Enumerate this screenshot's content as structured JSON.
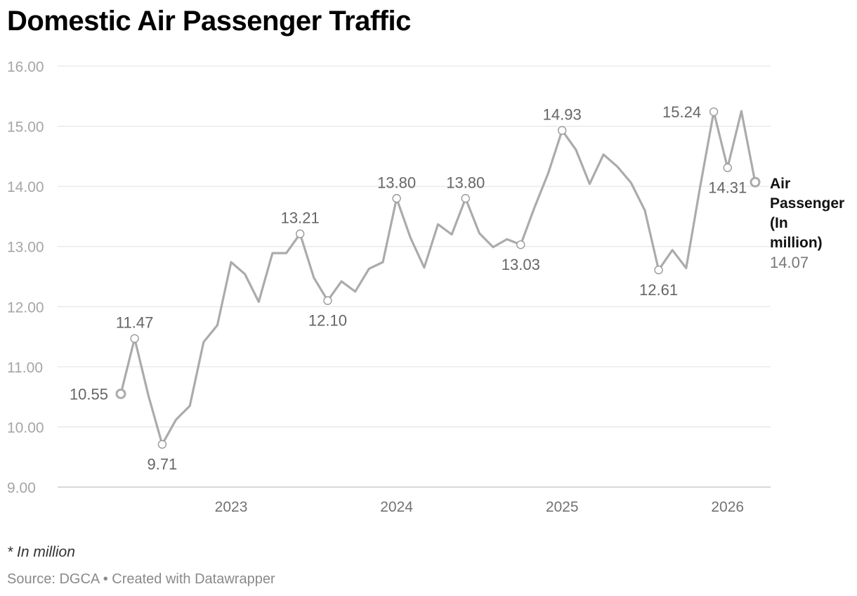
{
  "title": "Domestic Air Passenger Traffic",
  "note": "* In million",
  "source": "Source: DGCA • Created with Datawrapper",
  "colors": {
    "line": "#ababab",
    "grid": "#e0e0e0",
    "axis": "#cccccc"
  },
  "chart_data": {
    "type": "line",
    "title": "Domestic Air Passenger Traffic",
    "xlabel": "",
    "ylabel": "",
    "ylim": [
      9,
      16
    ],
    "yticks": [
      "9.00",
      "10.00",
      "11.00",
      "12.00",
      "13.00",
      "14.00",
      "15.00",
      "16.00"
    ],
    "xticks": [
      {
        "label": "2023",
        "index": 8
      },
      {
        "label": "2024",
        "index": 20
      },
      {
        "label": "2025",
        "index": 32
      },
      {
        "label": "2026",
        "index": 44
      }
    ],
    "series": [
      {
        "name": "Air Passenger (In million)",
        "name_lines": [
          "Air",
          "Passenger",
          "(In",
          "million)"
        ],
        "last_value_label": "14.07",
        "values": [
          10.55,
          11.47,
          10.52,
          9.71,
          10.12,
          10.35,
          11.41,
          11.69,
          12.74,
          12.54,
          12.08,
          12.89,
          12.89,
          13.21,
          12.48,
          12.1,
          12.42,
          12.25,
          12.63,
          12.74,
          13.8,
          13.15,
          12.65,
          13.37,
          13.2,
          13.8,
          13.22,
          12.99,
          13.12,
          13.03,
          13.65,
          14.22,
          14.93,
          14.61,
          14.04,
          14.53,
          14.33,
          14.06,
          13.6,
          12.61,
          12.94,
          12.64,
          13.98,
          15.24,
          14.31,
          15.25,
          14.07
        ]
      }
    ],
    "annotations": [
      {
        "index": 0,
        "label": "10.55",
        "position": "left"
      },
      {
        "index": 1,
        "label": "11.47",
        "position": "above"
      },
      {
        "index": 3,
        "label": "9.71",
        "position": "below"
      },
      {
        "index": 13,
        "label": "13.21",
        "position": "above"
      },
      {
        "index": 15,
        "label": "12.10",
        "position": "below"
      },
      {
        "index": 20,
        "label": "13.80",
        "position": "above"
      },
      {
        "index": 25,
        "label": "13.80",
        "position": "above"
      },
      {
        "index": 29,
        "label": "13.03",
        "position": "below"
      },
      {
        "index": 32,
        "label": "14.93",
        "position": "above"
      },
      {
        "index": 39,
        "label": "12.61",
        "position": "below"
      },
      {
        "index": 43,
        "label": "15.24",
        "position": "left"
      },
      {
        "index": 44,
        "label": "14.31",
        "position": "below"
      }
    ]
  }
}
